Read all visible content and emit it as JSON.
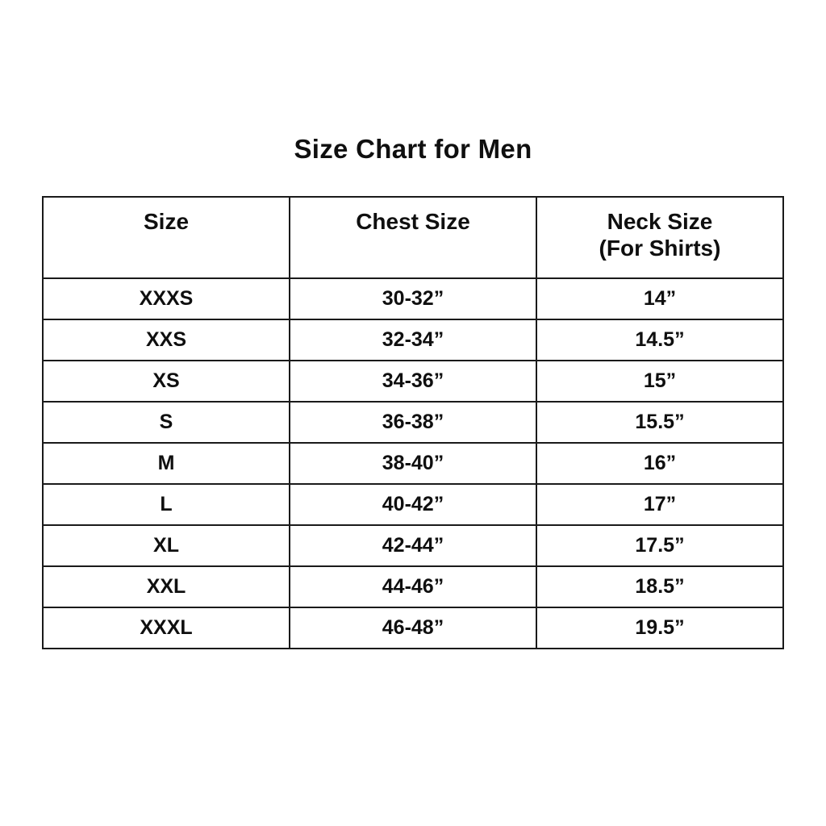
{
  "title": "Size Chart for Men",
  "table": {
    "headers": {
      "size": "Size",
      "chest": "Chest Size",
      "neck_line1": "Neck Size",
      "neck_line2": "(For Shirts)"
    },
    "rows": [
      {
        "size": "XXXS",
        "chest": "30-32”",
        "neck": "14”"
      },
      {
        "size": "XXS",
        "chest": "32-34”",
        "neck": "14.5”"
      },
      {
        "size": "XS",
        "chest": "34-36”",
        "neck": "15”"
      },
      {
        "size": "S",
        "chest": "36-38”",
        "neck": "15.5”"
      },
      {
        "size": "M",
        "chest": "38-40”",
        "neck": "16”"
      },
      {
        "size": "L",
        "chest": "40-42”",
        "neck": "17”"
      },
      {
        "size": "XL",
        "chest": "42-44”",
        "neck": "17.5”"
      },
      {
        "size": "XXL",
        "chest": "44-46”",
        "neck": "18.5”"
      },
      {
        "size": "XXXL",
        "chest": "46-48”",
        "neck": "19.5”"
      }
    ]
  },
  "chart_data": {
    "type": "table",
    "title": "Size Chart for Men",
    "columns": [
      "Size",
      "Chest Size",
      "Neck Size (For Shirts)"
    ],
    "rows": [
      [
        "XXXS",
        "30-32”",
        "14”"
      ],
      [
        "XXS",
        "32-34”",
        "14.5”"
      ],
      [
        "XS",
        "34-36”",
        "15”"
      ],
      [
        "S",
        "36-38”",
        "15.5”"
      ],
      [
        "M",
        "38-40”",
        "16”"
      ],
      [
        "L",
        "40-42”",
        "17”"
      ],
      [
        "XL",
        "42-44”",
        "17.5”"
      ],
      [
        "XXL",
        "44-46”",
        "18.5”"
      ],
      [
        "XXXL",
        "46-48”",
        "19.5”"
      ]
    ],
    "layout_hints": {
      "columns_equal_width": true,
      "header_rows": 1,
      "border_color": "#1a1a1a",
      "background": "#ffffff",
      "text_color": "#0f0f0f"
    }
  }
}
